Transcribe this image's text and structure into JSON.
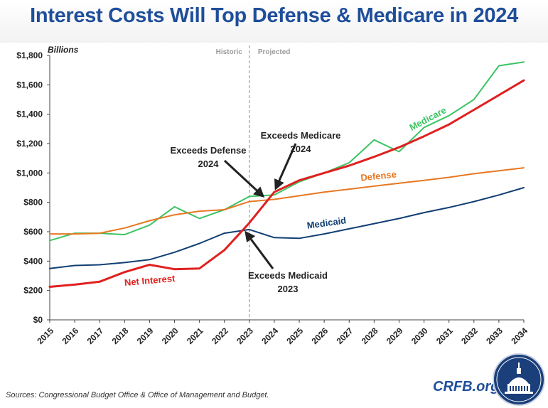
{
  "title": "Interest Costs Will Top Defense & Medicare in 2024",
  "source": "Sources: Congressional Budget Office & Office of Management and Budget.",
  "site": "CRFB.org",
  "colors": {
    "title": "#1f4e9a",
    "net_interest": "#e02020",
    "defense": "#e87722",
    "medicare": "#3cc464",
    "medicaid": "#123f73"
  },
  "chart_data": {
    "type": "line",
    "ylabel": "Billions",
    "ylim": [
      0,
      1800
    ],
    "yticks": [
      0,
      200,
      400,
      600,
      800,
      1000,
      1200,
      1400,
      1600,
      1800
    ],
    "ytick_labels": [
      "$0",
      "$200",
      "$400",
      "$600",
      "$800",
      "$1,000",
      "$1,200",
      "$1,400",
      "$1,600",
      "$1,800"
    ],
    "x": [
      2015,
      2016,
      2017,
      2018,
      2019,
      2020,
      2021,
      2022,
      2023,
      2024,
      2025,
      2026,
      2027,
      2028,
      2029,
      2030,
      2031,
      2032,
      2033,
      2034
    ],
    "divider": {
      "x": 2023,
      "left_label": "Historic",
      "right_label": "Projected"
    },
    "series": [
      {
        "key": "medicare",
        "name": "Medicare",
        "values": [
          540,
          590,
          590,
          580,
          645,
          770,
          690,
          750,
          840,
          850,
          940,
          1000,
          1070,
          1225,
          1145,
          1310,
          1390,
          1500,
          1730,
          1755
        ]
      },
      {
        "key": "defense",
        "name": "Defense",
        "values": [
          585,
          585,
          590,
          625,
          675,
          715,
          740,
          750,
          805,
          820,
          845,
          870,
          890,
          910,
          930,
          950,
          970,
          995,
          1015,
          1035
        ]
      },
      {
        "key": "medicaid",
        "name": "Medicaid",
        "values": [
          350,
          370,
          375,
          390,
          410,
          460,
          520,
          590,
          615,
          560,
          555,
          585,
          620,
          655,
          690,
          730,
          765,
          805,
          850,
          900
        ]
      },
      {
        "key": "net_interest",
        "name": "Net Interest",
        "values": [
          225,
          240,
          260,
          325,
          375,
          345,
          350,
          475,
          660,
          870,
          950,
          1000,
          1050,
          1110,
          1175,
          1250,
          1330,
          1430,
          1530,
          1630
        ]
      }
    ],
    "annotations": [
      {
        "line1": "Exceeds Defense",
        "line2": "2024"
      },
      {
        "line1": "Exceeds Medicare",
        "line2": "2024"
      },
      {
        "line1": "Exceeds Medicaid",
        "line2": "2023"
      }
    ]
  }
}
